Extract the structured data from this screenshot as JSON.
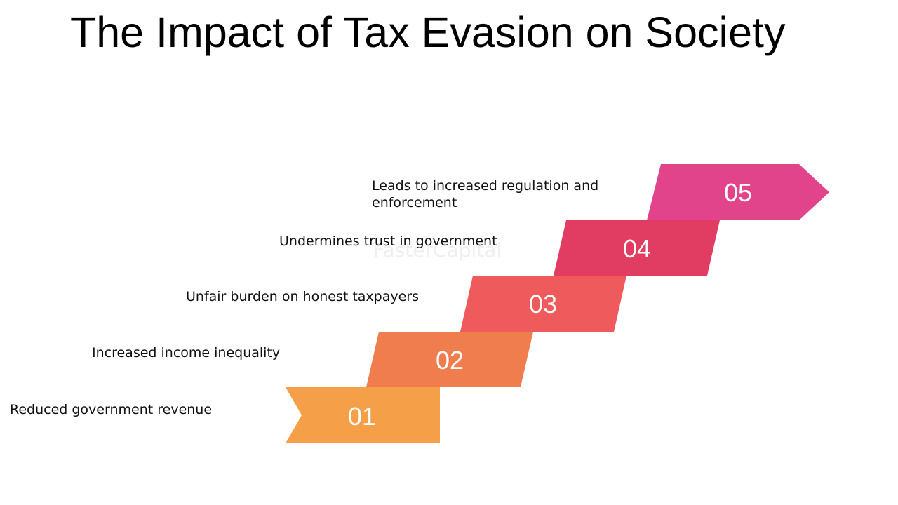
{
  "title": "The Impact of Tax Evasion on Society",
  "watermark": "FasterCapital",
  "steps": [
    {
      "number": "01",
      "label": "Reduced government revenue",
      "color": "#F5A048"
    },
    {
      "number": "02",
      "label": "Increased income inequality",
      "color": "#F07D4E"
    },
    {
      "number": "03",
      "label": "Unfair burden on honest taxpayers",
      "color": "#EF5B5C"
    },
    {
      "number": "04",
      "label": "Undermines trust in government",
      "color": "#E13C62"
    },
    {
      "number": "05",
      "label": "Leads to increased regulation and enforcement",
      "color": "#E1448A"
    }
  ]
}
